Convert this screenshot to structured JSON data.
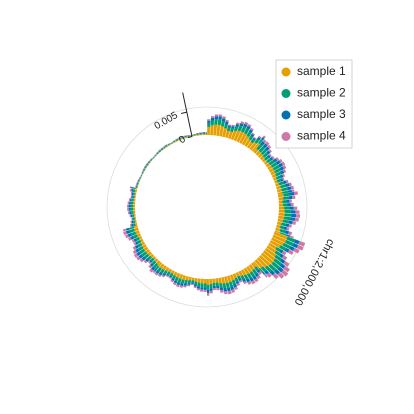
{
  "chart_data": {
    "type": "circular-stacked-bar",
    "title": "",
    "chromosome_label": "chr1:2,000,000",
    "radial_axis": {
      "ticks": [
        0,
        0.005
      ],
      "tick_labels": [
        "0",
        "0.005"
      ],
      "max": 0.009
    },
    "legend": {
      "position": "top-right"
    },
    "angular_range_deg": [
      0,
      360
    ],
    "series": [
      {
        "name": "sample 1",
        "color": "#E69F00"
      },
      {
        "name": "sample 2",
        "color": "#009E73"
      },
      {
        "name": "sample 3",
        "color": "#0072B2"
      },
      {
        "name": "sample 4",
        "color": "#CC79A7"
      }
    ],
    "bins": [
      {
        "start_deg": 0,
        "end_deg": 40,
        "values": [
          0.0022,
          0.0011,
          0.0006,
          0.0004
        ]
      },
      {
        "start_deg": 40,
        "end_deg": 80,
        "values": [
          0.0009,
          0.0012,
          0.0008,
          0.0005
        ]
      },
      {
        "start_deg": 80,
        "end_deg": 110,
        "values": [
          0.0012,
          0.0013,
          0.001,
          0.0008
        ]
      },
      {
        "start_deg": 110,
        "end_deg": 140,
        "values": [
          0.0028,
          0.0016,
          0.001,
          0.0012
        ]
      },
      {
        "start_deg": 140,
        "end_deg": 180,
        "values": [
          0.0013,
          0.001,
          0.0007,
          0.0006
        ]
      },
      {
        "start_deg": 180,
        "end_deg": 220,
        "values": [
          0.0009,
          0.0008,
          0.0005,
          0.0004
        ]
      },
      {
        "start_deg": 220,
        "end_deg": 255,
        "values": [
          0.0008,
          0.001,
          0.0007,
          0.0006
        ]
      },
      {
        "start_deg": 255,
        "end_deg": 285,
        "values": [
          0.0004,
          0.0005,
          0.0004,
          0.0003
        ]
      },
      {
        "start_deg": 285,
        "end_deg": 325,
        "values": [
          0.0001,
          0.0002,
          0.0001,
          0.0001
        ]
      },
      {
        "start_deg": 325,
        "end_deg": 360,
        "values": [
          0.0002,
          0.0002,
          0.0001,
          0.0001
        ]
      }
    ]
  }
}
